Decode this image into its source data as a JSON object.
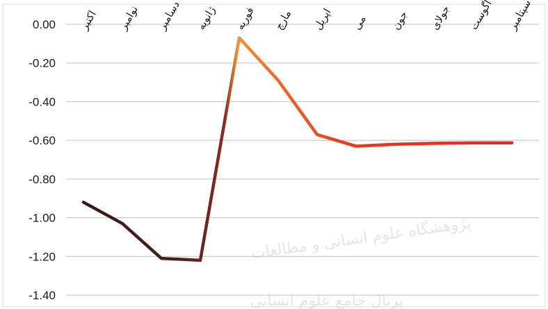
{
  "chart_data": {
    "type": "line",
    "title": "",
    "xlabel": "",
    "ylabel": "",
    "categories": [
      "اکتبر",
      "نوامبر",
      "دسامبر",
      "ژانویه",
      "فوریه",
      "مارچ",
      "اپریل",
      "می",
      "جون",
      "جولای",
      "اگوست",
      "سپتامبر"
    ],
    "y_tick_labels": [
      "0.00",
      "-0.20",
      "-0.40",
      "-0.60",
      "-0.80",
      "-1.00",
      "-1.20",
      "-1.40"
    ],
    "y_ticks": [
      0,
      -0.2,
      -0.4,
      -0.6,
      -0.8,
      -1.0,
      -1.2,
      -1.4
    ],
    "ylim": [
      -1.4,
      0
    ],
    "grid": true,
    "legend": "none",
    "x_label_position": "top",
    "series": [
      {
        "values": [
          -0.92,
          -1.03,
          -1.21,
          -1.22,
          -0.07,
          -0.29,
          -0.57,
          -0.63,
          -0.62,
          -0.615,
          -0.613,
          -0.613
        ]
      }
    ],
    "line_colors": {
      "start": "#3a1a1a",
      "mid": "#8b2a1f",
      "peak": "#f0933a",
      "end": "#e8261e"
    }
  },
  "watermark": {
    "line1": "پژوهشگاه علوم انسانی و مطالعات",
    "line2": "پرتال جامع علوم انسانی"
  }
}
